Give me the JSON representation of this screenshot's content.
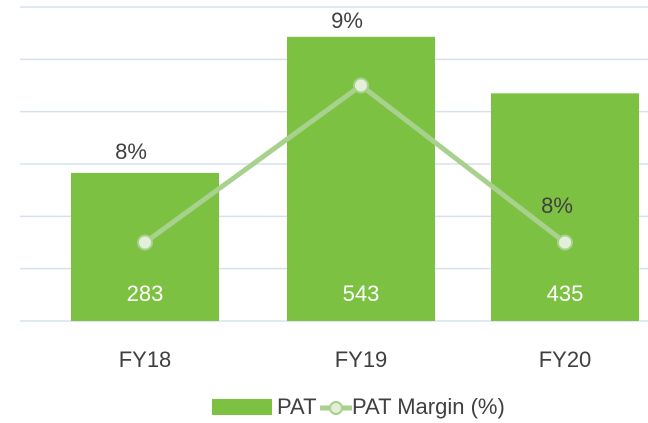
{
  "chart_data": {
    "type": "bar-line",
    "categories": [
      "FY18",
      "FY19",
      "FY20"
    ],
    "series": [
      {
        "name": "PAT",
        "type": "bar",
        "color": "#7dc142",
        "values": [
          283,
          543,
          435
        ]
      },
      {
        "name": "PAT Margin (%)",
        "type": "line",
        "axis": "y2",
        "color": "#a9d18e",
        "values": [
          8,
          9,
          8
        ],
        "value_labels": [
          "8%",
          "9%",
          "8%"
        ]
      }
    ],
    "ylim": [
      0,
      600
    ],
    "yticks": [
      0,
      100,
      200,
      300,
      400,
      500,
      600
    ],
    "y2lim": [
      7.5,
      9.5
    ],
    "grid": true,
    "legend": "bottom"
  }
}
